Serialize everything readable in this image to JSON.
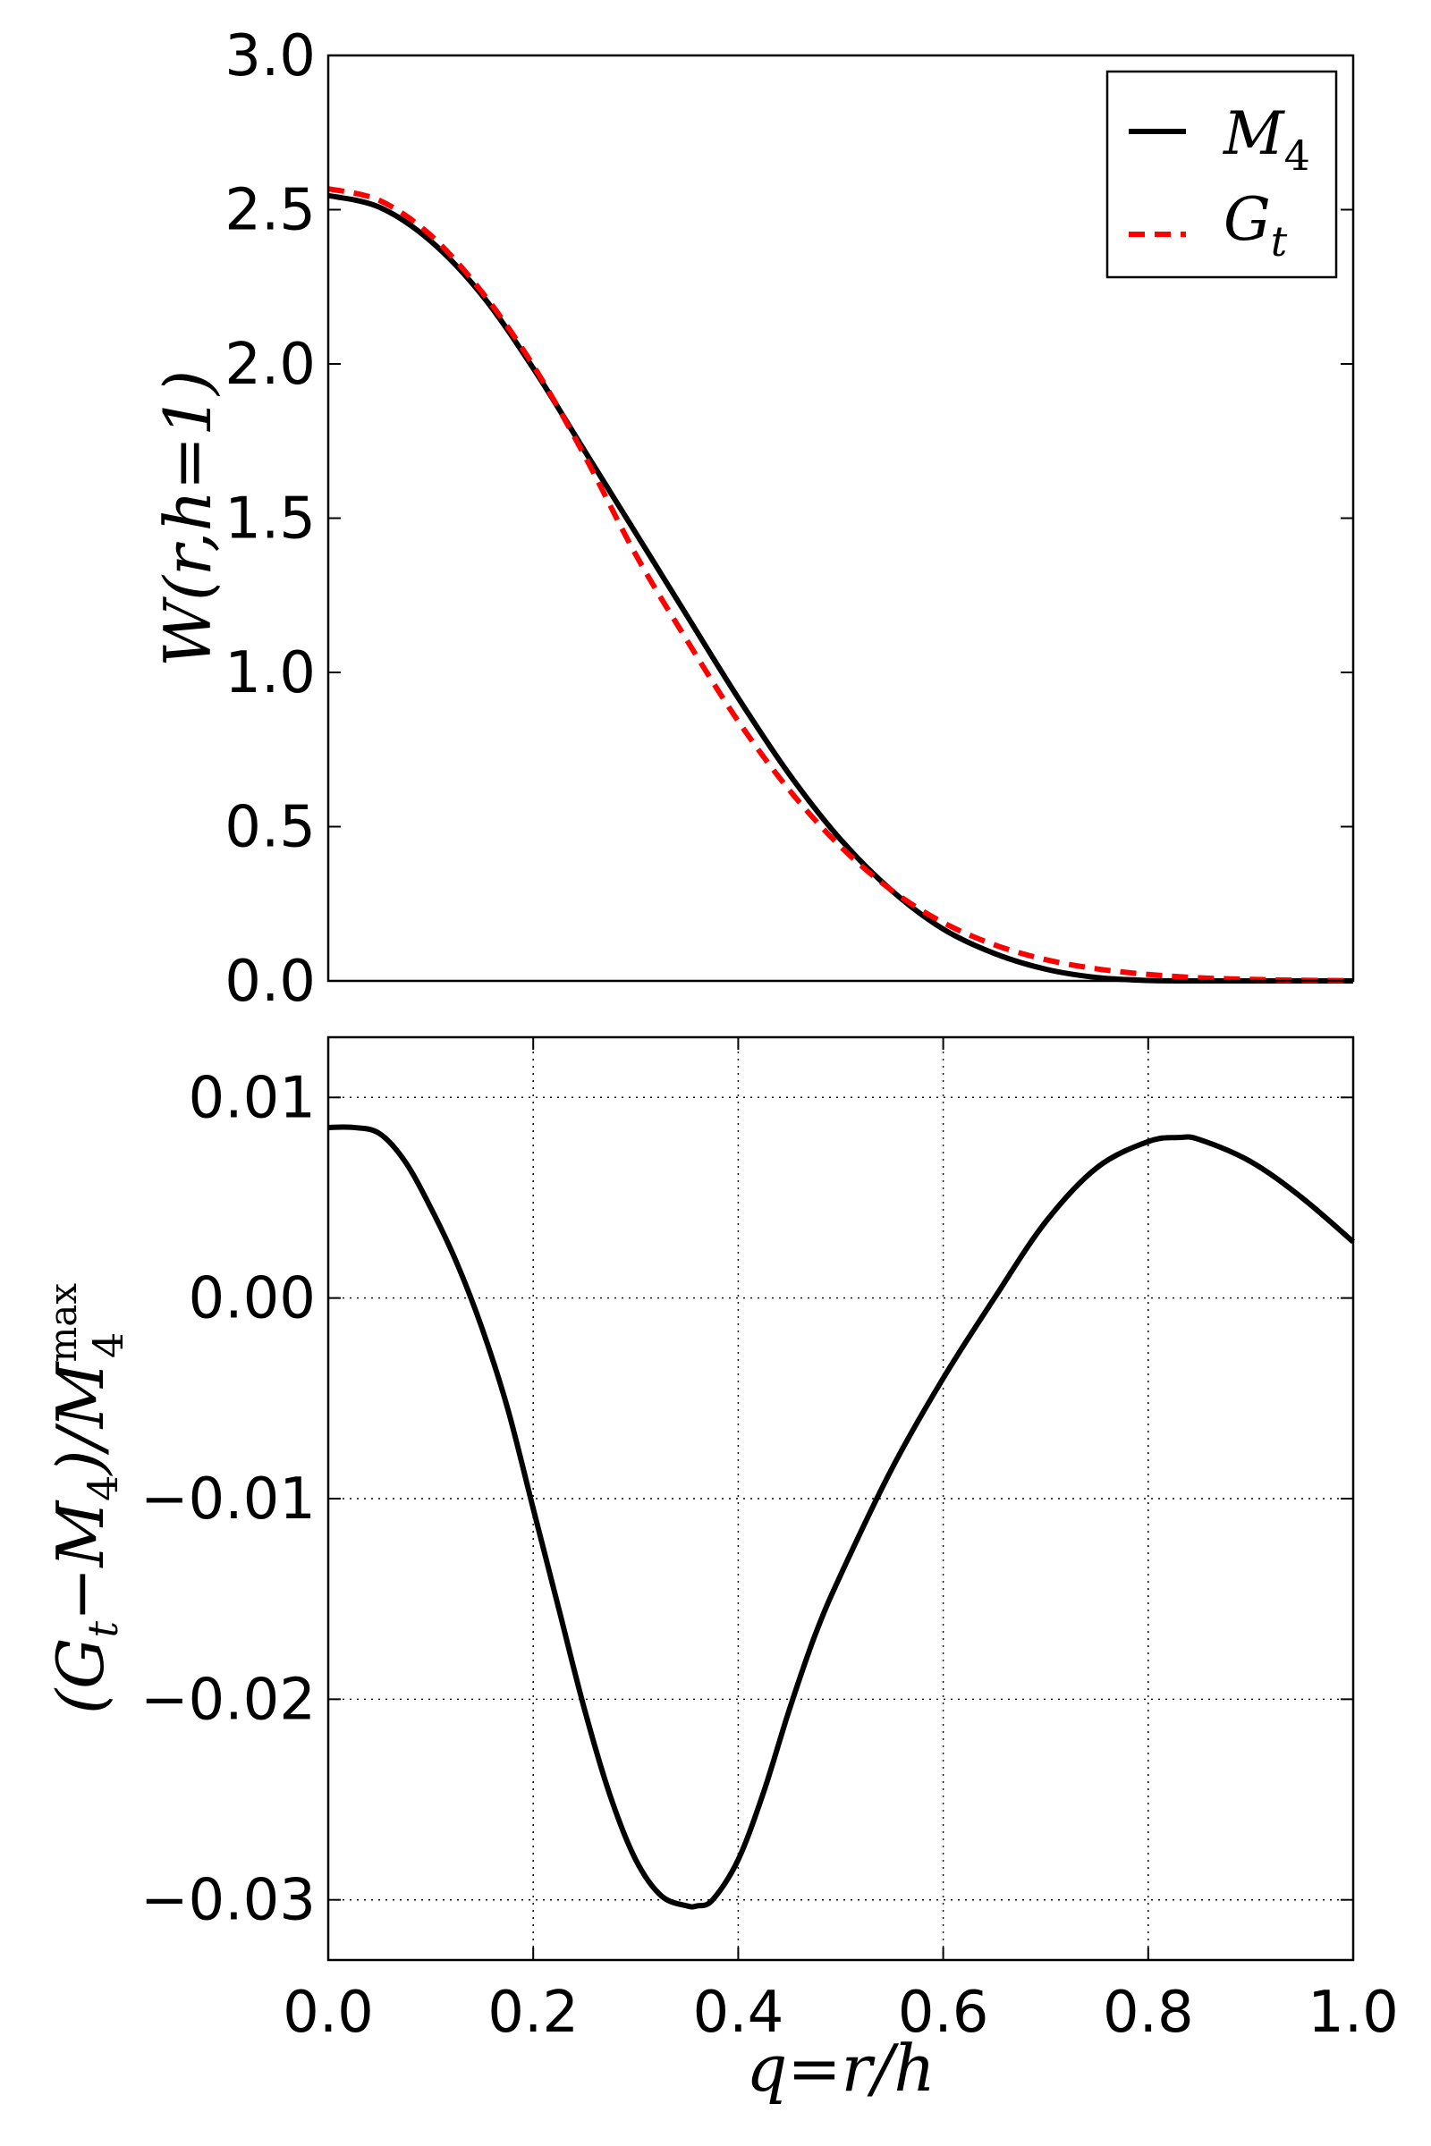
{
  "chart_data": [
    {
      "type": "line",
      "ylabel": "W(r,h=1)",
      "xlim": [
        0.0,
        1.0
      ],
      "ylim": [
        0.0,
        3.0
      ],
      "yticks": [
        "0.0",
        "0.5",
        "1.0",
        "1.5",
        "2.0",
        "2.5",
        "3.0"
      ],
      "grid": false,
      "legend_placement": "top-right",
      "series": [
        {
          "name": "M4",
          "label_main": "M",
          "label_sub": "4",
          "color": "#000000",
          "style": "solid",
          "x": [
            0.0,
            0.05,
            0.1,
            0.15,
            0.2,
            0.25,
            0.3,
            0.35,
            0.4,
            0.45,
            0.5,
            0.55,
            0.6,
            0.65,
            0.7,
            0.75,
            0.8,
            0.85,
            0.9,
            0.95,
            1.0
          ],
          "y": [
            2.546,
            2.508,
            2.398,
            2.223,
            1.986,
            1.719,
            1.452,
            1.184,
            0.917,
            0.669,
            0.458,
            0.292,
            0.168,
            0.089,
            0.038,
            0.011,
            0.0014,
            0.0,
            0.0,
            0.0,
            0.0
          ]
        },
        {
          "name": "Gt",
          "label_main": "G",
          "label_sub": "t",
          "color": "#ff0000",
          "style": "dashed",
          "x": [
            0.0,
            0.05,
            0.1,
            0.15,
            0.2,
            0.25,
            0.3,
            0.35,
            0.4,
            0.45,
            0.5,
            0.55,
            0.6,
            0.65,
            0.7,
            0.75,
            0.8,
            0.85,
            0.9,
            0.95,
            1.0
          ],
          "y": [
            2.568,
            2.53,
            2.417,
            2.233,
            1.995,
            1.703,
            1.382,
            1.104,
            0.842,
            0.618,
            0.435,
            0.293,
            0.189,
            0.117,
            0.069,
            0.039,
            0.021,
            0.01,
            0.005,
            0.002,
            0.001
          ]
        }
      ]
    },
    {
      "type": "line",
      "ylabel_main": "(G",
      "ylabel_sub1": "t",
      "ylabel_mid": "−M",
      "ylabel_sub2": "4",
      "ylabel_end": ")/M",
      "ylabel_sup": "max",
      "ylabel_sub3": "4",
      "xlabel": "q=r/h",
      "xlim": [
        0.0,
        1.0
      ],
      "ylim": [
        -0.033,
        0.013
      ],
      "xticks": [
        "0.0",
        "0.2",
        "0.4",
        "0.6",
        "0.8",
        "1.0"
      ],
      "yticks": [
        "0.01",
        "0.00",
        "−0.01",
        "−0.02",
        "−0.03"
      ],
      "ytick_values": [
        0.01,
        0.0,
        -0.01,
        -0.02,
        -0.03
      ],
      "grid": true,
      "series": [
        {
          "color": "#000000",
          "style": "solid",
          "x": [
            0.0,
            0.025,
            0.05,
            0.075,
            0.1,
            0.125,
            0.15,
            0.175,
            0.2,
            0.225,
            0.25,
            0.275,
            0.3,
            0.325,
            0.35,
            0.36,
            0.375,
            0.4,
            0.425,
            0.45,
            0.475,
            0.5,
            0.55,
            0.6,
            0.65,
            0.7,
            0.75,
            0.8,
            0.83,
            0.85,
            0.9,
            0.95,
            1.0
          ],
          "y": [
            0.0085,
            0.0085,
            0.0082,
            0.0068,
            0.0045,
            0.0018,
            -0.0015,
            -0.0055,
            -0.0105,
            -0.0155,
            -0.0205,
            -0.0248,
            -0.028,
            -0.0298,
            -0.0303,
            -0.0303,
            -0.03,
            -0.028,
            -0.0246,
            -0.0205,
            -0.0168,
            -0.0138,
            -0.0085,
            -0.004,
            0.0,
            0.0038,
            0.0065,
            0.0078,
            0.008,
            0.0079,
            0.0068,
            0.005,
            0.0028
          ]
        }
      ]
    }
  ]
}
